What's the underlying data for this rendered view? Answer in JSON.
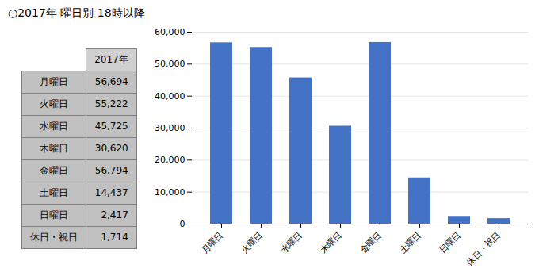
{
  "chart_data": [
    {
      "type": "bar",
      "title": "○2017年 曜日別 18時以降",
      "categories": [
        "月曜日",
        "火曜日",
        "水曜日",
        "木曜日",
        "金曜日",
        "土曜日",
        "日曜日",
        "休日・祝日"
      ],
      "values": [
        56694,
        55222,
        45725,
        30620,
        56794,
        14437,
        2417,
        1714
      ],
      "color": "#4472C4",
      "ylim": [
        0,
        60000
      ],
      "yticks": [
        0,
        {
          "value": 10000,
          "label": "10,000"
        },
        {
          "value": 20000,
          "label": "20,000"
        },
        {
          "value": 30000,
          "label": "30,000"
        },
        {
          "value": 40000,
          "label": "40,000"
        },
        {
          "value": 50000,
          "label": "50,000"
        },
        {
          "value": 60000,
          "label": "60,000"
        }
      ],
      "grid": true
    },
    {
      "type": "table",
      "title": "2017年",
      "categories": [
        "月曜日",
        "火曜日",
        "水曜日",
        "木曜日",
        "金曜日",
        "土曜日",
        "日曜日",
        "休日・祝日"
      ],
      "values": [
        56694,
        55222,
        45725,
        30620,
        56794,
        14437,
        2417,
        1714
      ],
      "value_labels": [
        "56,694",
        "55,222",
        "45,725",
        "30,620",
        "56,794",
        "14,437",
        "2,417",
        "1,714"
      ]
    }
  ]
}
